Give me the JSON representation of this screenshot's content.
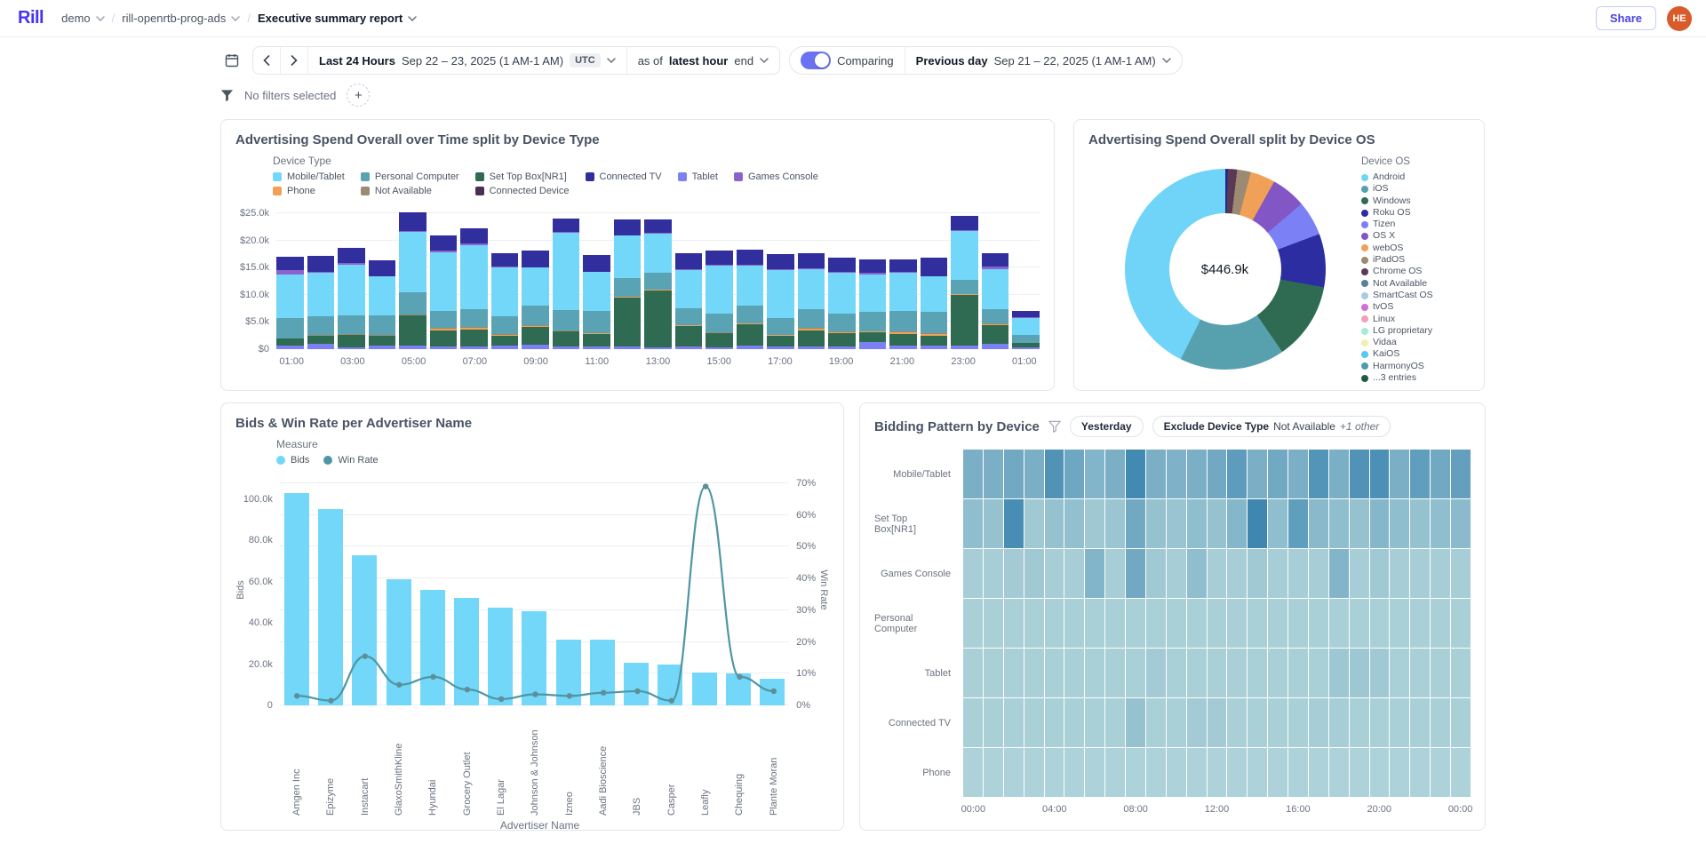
{
  "nav": {
    "logo": "Rill",
    "breadcrumbs": [
      {
        "label": "demo"
      },
      {
        "label": "rill-openrtb-prog-ads"
      },
      {
        "label": "Executive summary report"
      }
    ],
    "share_label": "Share",
    "avatar_initials": "HE"
  },
  "toolbar": {
    "range_label": "Last 24 Hours",
    "range_dates": "Sep 22 – 23, 2025 (1 AM-1 AM)",
    "timezone": "UTC",
    "as_of_prefix": "as of",
    "as_of_value": "latest hour",
    "as_of_suffix": "end",
    "comparing_label": "Comparing",
    "compare_range_label": "Previous day",
    "compare_range_dates": "Sep 21 – 22, 2025 (1 AM-1 AM)"
  },
  "filter_bar": {
    "text": "No filters selected",
    "add_label": "+"
  },
  "chart_data": [
    {
      "type": "bar",
      "title": "Advertising Spend Overall over Time split by Device Type",
      "legend_title": "Device Type",
      "legend": [
        {
          "label": "Mobile/Tablet",
          "color": "#72d7f8"
        },
        {
          "label": "Personal Computer",
          "color": "#5aa3b4"
        },
        {
          "label": "Set Top Box[NR1]",
          "color": "#2e6b52"
        },
        {
          "label": "Connected TV",
          "color": "#312e9e"
        },
        {
          "label": "Tablet",
          "color": "#7b80f4"
        },
        {
          "label": "Games Console",
          "color": "#8a63cc"
        },
        {
          "label": "Phone",
          "color": "#f0a057"
        },
        {
          "label": "Not Available",
          "color": "#9c8a72"
        },
        {
          "label": "Connected Device",
          "color": "#4a3050"
        }
      ],
      "stack_order": [
        "Tablet",
        "Set Top Box[NR1]",
        "Phone",
        "Not Available",
        "Personal Computer",
        "Mobile/Tablet",
        "Games Console",
        "Connected TV"
      ],
      "stack_colors": {
        "Tablet": "#7b80f4",
        "Set Top Box[NR1]": "#2e6b52",
        "Phone": "#f0a057",
        "Not Available": "#9c8a72",
        "Personal Computer": "#5aa3b4",
        "Mobile/Tablet": "#72d7f8",
        "Games Console": "#8a63cc",
        "Connected TV": "#312e9e"
      },
      "unit": "$ thousands",
      "hours": [
        "01:00",
        "02:00",
        "03:00",
        "04:00",
        "05:00",
        "06:00",
        "07:00",
        "08:00",
        "09:00",
        "10:00",
        "11:00",
        "12:00",
        "13:00",
        "14:00",
        "15:00",
        "16:00",
        "17:00",
        "18:00",
        "19:00",
        "20:00",
        "21:00",
        "22:00",
        "23:00",
        "00:00",
        "01:00"
      ],
      "x_tick_labels": [
        "01:00",
        "03:00",
        "05:00",
        "07:00",
        "09:00",
        "11:00",
        "13:00",
        "15:00",
        "17:00",
        "19:00",
        "21:00",
        "23:00",
        "01:00"
      ],
      "y_ticks": [
        {
          "label": "$25.0k",
          "value": 25
        },
        {
          "label": "$20.0k",
          "value": 20
        },
        {
          "label": "$15.0k",
          "value": 15
        },
        {
          "label": "$10.0k",
          "value": 10
        },
        {
          "label": "$5.0k",
          "value": 5
        },
        {
          "label": "$0",
          "value": 0
        }
      ],
      "ymax": 26.5,
      "bars": [
        [
          0.7,
          1.2,
          0.0,
          0.1,
          3.7,
          8.1,
          0.7,
          2.5
        ],
        [
          1.0,
          1.5,
          0.0,
          0.1,
          3.5,
          8.0,
          0.1,
          3.0
        ],
        [
          0.4,
          2.3,
          0.0,
          0.1,
          3.5,
          9.3,
          0.2,
          2.8
        ],
        [
          0.6,
          1.9,
          0.0,
          0.1,
          3.6,
          7.2,
          0.1,
          2.8
        ],
        [
          0.6,
          5.6,
          0.1,
          0.1,
          4.0,
          11.2,
          0.1,
          3.5
        ],
        [
          0.5,
          3.0,
          0.3,
          0.1,
          3.2,
          10.7,
          0.4,
          2.8
        ],
        [
          0.5,
          3.1,
          0.4,
          0.1,
          3.2,
          11.9,
          0.2,
          2.9
        ],
        [
          0.6,
          1.8,
          0.3,
          0.1,
          3.3,
          9.0,
          0.1,
          2.5
        ],
        [
          0.9,
          3.2,
          0.2,
          0.1,
          3.6,
          7.0,
          0.1,
          3.0
        ],
        [
          0.5,
          2.7,
          0.1,
          0.1,
          3.8,
          14.3,
          0.1,
          2.5
        ],
        [
          0.5,
          2.3,
          0.1,
          0.1,
          4.0,
          7.2,
          0.1,
          3.0
        ],
        [
          0.5,
          9.0,
          0.1,
          0.1,
          3.4,
          7.8,
          0.1,
          2.9
        ],
        [
          0.4,
          10.4,
          0.1,
          0.1,
          3.0,
          7.3,
          0.1,
          2.5
        ],
        [
          0.5,
          3.8,
          0.1,
          0.1,
          3.0,
          7.1,
          0.1,
          2.9
        ],
        [
          0.4,
          2.5,
          0.1,
          0.1,
          3.5,
          8.8,
          0.2,
          2.5
        ],
        [
          0.7,
          3.9,
          0.1,
          0.1,
          3.2,
          7.4,
          0.2,
          2.8
        ],
        [
          0.5,
          2.0,
          0.1,
          0.1,
          3.0,
          8.9,
          0.2,
          2.7
        ],
        [
          0.5,
          3.0,
          0.3,
          0.1,
          3.4,
          7.5,
          0.1,
          2.8
        ],
        [
          0.5,
          2.4,
          0.2,
          0.1,
          3.4,
          7.5,
          0.1,
          2.6
        ],
        [
          1.3,
          1.8,
          0.1,
          0.1,
          3.5,
          7.0,
          0.3,
          2.5
        ],
        [
          0.6,
          2.2,
          0.3,
          0.1,
          3.8,
          7.0,
          0.2,
          2.3
        ],
        [
          0.7,
          1.8,
          0.3,
          0.1,
          4.0,
          6.5,
          0.1,
          3.4
        ],
        [
          0.6,
          9.4,
          0.1,
          0.1,
          2.5,
          9.0,
          0.3,
          2.6
        ],
        [
          1.0,
          3.5,
          0.1,
          0.1,
          2.7,
          7.3,
          0.5,
          2.4
        ],
        [
          0.3,
          0.8,
          0.0,
          0.0,
          1.5,
          3.2,
          0.1,
          1.2
        ]
      ]
    },
    {
      "type": "pie",
      "title": "Advertising Spend Overall split by Device OS",
      "center_label": "$446.9k",
      "legend_title": "Device OS",
      "legend": [
        {
          "label": "Android",
          "color": "#6fd4f7"
        },
        {
          "label": "iOS",
          "color": "#57a0ae"
        },
        {
          "label": "Windows",
          "color": "#2e6b52"
        },
        {
          "label": "Roku OS",
          "color": "#2b2da0"
        },
        {
          "label": "Tizen",
          "color": "#7b80f4"
        },
        {
          "label": "OS X",
          "color": "#8257c5"
        },
        {
          "label": "webOS",
          "color": "#f0a057"
        },
        {
          "label": "iPadOS",
          "color": "#9c8a72"
        },
        {
          "label": "Chrome OS",
          "color": "#5a3a52"
        },
        {
          "label": "Not Available",
          "color": "#5b7d9e"
        },
        {
          "label": "SmartCast OS",
          "color": "#a9cbe3"
        },
        {
          "label": "tvOS",
          "color": "#cf6fd6"
        },
        {
          "label": "Linux",
          "color": "#f2a0bc"
        },
        {
          "label": "LG proprietary",
          "color": "#a5ecd2"
        },
        {
          "label": "Vidaa",
          "color": "#f3eeb1"
        },
        {
          "label": "KaiOS",
          "color": "#55c8f0"
        },
        {
          "label": "HarmonyOS",
          "color": "#4f9bab"
        },
        {
          "label": "...3 entries",
          "color": "#1f5c46"
        }
      ],
      "slices_clockwise_from_top": [
        {
          "name": "Others",
          "pct": 0.4,
          "color": "#23268f"
        },
        {
          "name": "Chrome OS",
          "pct": 1.5,
          "color": "#5a3a52"
        },
        {
          "name": "iPadOS",
          "pct": 2.2,
          "color": "#9c8a72"
        },
        {
          "name": "webOS",
          "pct": 4.0,
          "color": "#f0a057"
        },
        {
          "name": "OS X",
          "pct": 5.6,
          "color": "#8257c5"
        },
        {
          "name": "Tizen",
          "pct": 5.6,
          "color": "#7b80f4"
        },
        {
          "name": "Roku OS",
          "pct": 8.6,
          "color": "#2b2da0"
        },
        {
          "name": "Windows",
          "pct": 12.5,
          "color": "#2e6b52"
        },
        {
          "name": "iOS",
          "pct": 16.9,
          "color": "#57a0ae"
        },
        {
          "name": "Android",
          "pct": 42.7,
          "color": "#6fd4f7"
        }
      ]
    },
    {
      "type": "bar+line",
      "title": "Bids & Win Rate per Advertiser Name",
      "legend_title": "Measure",
      "series_legend": [
        {
          "label": "Bids",
          "color": "#72d7f8"
        },
        {
          "label": "Win Rate",
          "color": "#4e96a4"
        }
      ],
      "categories": [
        "Amgen Inc",
        "Epizyme",
        "Instacart",
        "GlaxoSmithKline",
        "Hyundai",
        "Grocery Outlet",
        "El Lagar",
        "Johnson & Johnson",
        "Izneo",
        "Aadi Bioscience",
        "JBS",
        "Casper",
        "Leafly",
        "Chequing",
        "Plante Moran"
      ],
      "bids_thousands": [
        103,
        95,
        73,
        61,
        56,
        52,
        47.5,
        45.5,
        32,
        32,
        20.5,
        20,
        16,
        15.5,
        13
      ],
      "win_rate_pct": [
        3,
        1.5,
        15.5,
        6.5,
        9,
        5,
        2,
        3.5,
        3,
        4,
        4.5,
        1.5,
        69,
        9,
        4.5
      ],
      "left_axis": {
        "label": "Bids",
        "plot_max": 112,
        "ticks": [
          {
            "label": "100.0k",
            "value": 100
          },
          {
            "label": "80.0k",
            "value": 80
          },
          {
            "label": "60.0k",
            "value": 60
          },
          {
            "label": "40.0k",
            "value": 40
          },
          {
            "label": "20.0k",
            "value": 20
          },
          {
            "label": "0",
            "value": 0
          }
        ]
      },
      "right_axis": {
        "label": "Win Rate",
        "plot_max": 72.8,
        "ticks": [
          {
            "label": "70%",
            "value": 70
          },
          {
            "label": "60%",
            "value": 60
          },
          {
            "label": "50%",
            "value": 50
          },
          {
            "label": "40%",
            "value": 40
          },
          {
            "label": "30%",
            "value": 30
          },
          {
            "label": "20%",
            "value": 20
          },
          {
            "label": "10%",
            "value": 10
          },
          {
            "label": "0%",
            "value": 0
          }
        ]
      },
      "xlabel": "Advertiser Name"
    },
    {
      "type": "heatmap",
      "title": "Bidding Pattern by Device",
      "chips": [
        {
          "label": "Yesterday"
        },
        {
          "bold": "Exclude Device Type",
          "value": "Not Available",
          "extra": "+1 other"
        }
      ],
      "rows": [
        "Mobile/Tablet",
        "Set Top Box[NR1]",
        "Games Console",
        "Personal Computer",
        "Tablet",
        "Connected TV",
        "Phone"
      ],
      "x_tick_labels": [
        "00:00",
        "04:00",
        "08:00",
        "12:00",
        "16:00",
        "20:00",
        "00:00"
      ],
      "color_low": "#d6ede7",
      "color_high": "#2e7cab",
      "matrix": [
        [
          0.55,
          0.55,
          0.6,
          0.55,
          0.8,
          0.62,
          0.5,
          0.55,
          0.88,
          0.55,
          0.52,
          0.55,
          0.6,
          0.72,
          0.55,
          0.6,
          0.55,
          0.78,
          0.55,
          0.8,
          0.82,
          0.55,
          0.7,
          0.6,
          0.68
        ],
        [
          0.42,
          0.38,
          0.85,
          0.32,
          0.38,
          0.4,
          0.33,
          0.35,
          0.6,
          0.38,
          0.36,
          0.42,
          0.38,
          0.48,
          0.9,
          0.42,
          0.7,
          0.46,
          0.42,
          0.38,
          0.48,
          0.42,
          0.38,
          0.42,
          0.45
        ],
        [
          0.28,
          0.28,
          0.3,
          0.32,
          0.28,
          0.28,
          0.5,
          0.28,
          0.6,
          0.32,
          0.28,
          0.42,
          0.28,
          0.28,
          0.32,
          0.28,
          0.28,
          0.28,
          0.5,
          0.28,
          0.32,
          0.28,
          0.28,
          0.28,
          0.28
        ],
        [
          0.26,
          0.26,
          0.26,
          0.26,
          0.26,
          0.26,
          0.26,
          0.26,
          0.26,
          0.26,
          0.26,
          0.26,
          0.26,
          0.26,
          0.26,
          0.26,
          0.26,
          0.26,
          0.26,
          0.26,
          0.26,
          0.26,
          0.26,
          0.26,
          0.26
        ],
        [
          0.26,
          0.26,
          0.26,
          0.26,
          0.26,
          0.26,
          0.26,
          0.26,
          0.26,
          0.3,
          0.26,
          0.26,
          0.26,
          0.26,
          0.26,
          0.26,
          0.26,
          0.26,
          0.34,
          0.34,
          0.32,
          0.26,
          0.26,
          0.26,
          0.26
        ],
        [
          0.26,
          0.26,
          0.26,
          0.26,
          0.26,
          0.26,
          0.26,
          0.26,
          0.38,
          0.26,
          0.26,
          0.3,
          0.3,
          0.26,
          0.26,
          0.26,
          0.26,
          0.28,
          0.28,
          0.26,
          0.26,
          0.26,
          0.26,
          0.26,
          0.26
        ],
        [
          0.24,
          0.24,
          0.24,
          0.24,
          0.24,
          0.24,
          0.24,
          0.24,
          0.24,
          0.24,
          0.24,
          0.24,
          0.24,
          0.24,
          0.24,
          0.24,
          0.24,
          0.24,
          0.24,
          0.24,
          0.24,
          0.24,
          0.24,
          0.24,
          0.24
        ]
      ]
    }
  ]
}
